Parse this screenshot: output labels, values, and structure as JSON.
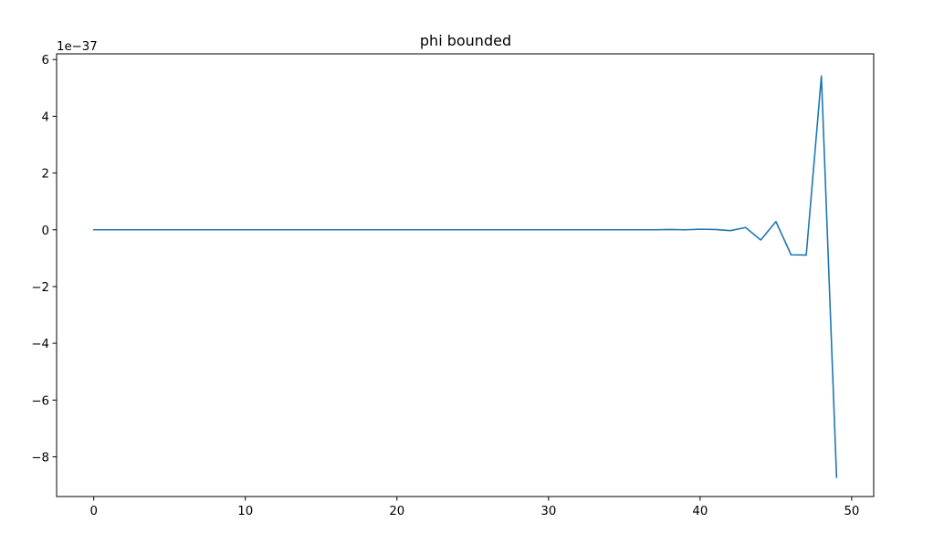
{
  "chart_data": {
    "type": "line",
    "title": "phi bounded",
    "xlabel": "",
    "ylabel": "",
    "y_offset_label": "1e−37",
    "xlim": [
      -2.45,
      51.45
    ],
    "ylim": [
      -9.4,
      6.2
    ],
    "x_ticks": [
      0,
      10,
      20,
      30,
      40,
      50
    ],
    "x_tick_labels": [
      "0",
      "10",
      "20",
      "30",
      "40",
      "50"
    ],
    "y_ticks": [
      -8,
      -6,
      -4,
      -2,
      0,
      2,
      4,
      6
    ],
    "y_tick_labels": [
      "−8",
      "−6",
      "−4",
      "−2",
      "0",
      "2",
      "4",
      "6"
    ],
    "grid": false,
    "series": [
      {
        "color": "#1f77b4",
        "x": [
          0,
          1,
          2,
          3,
          4,
          5,
          6,
          7,
          8,
          9,
          10,
          11,
          12,
          13,
          14,
          15,
          16,
          17,
          18,
          19,
          20,
          21,
          22,
          23,
          24,
          25,
          26,
          27,
          28,
          29,
          30,
          31,
          32,
          33,
          34,
          35,
          36,
          37,
          38,
          39,
          40,
          41,
          42,
          43,
          44,
          45,
          46,
          47,
          48,
          49
        ],
        "y": [
          0,
          0,
          0,
          0,
          0,
          0,
          0,
          0,
          0,
          0,
          0,
          0,
          0,
          0,
          0,
          0,
          0,
          0,
          0,
          0,
          0,
          0,
          0,
          0,
          0,
          0,
          0,
          0,
          0,
          0,
          0,
          0,
          0,
          0,
          0,
          0,
          0,
          0,
          0.01,
          0,
          0.02,
          0.01,
          -0.03,
          0.08,
          -0.36,
          0.29,
          -0.88,
          -0.89,
          5.42,
          -8.72
        ]
      }
    ]
  }
}
